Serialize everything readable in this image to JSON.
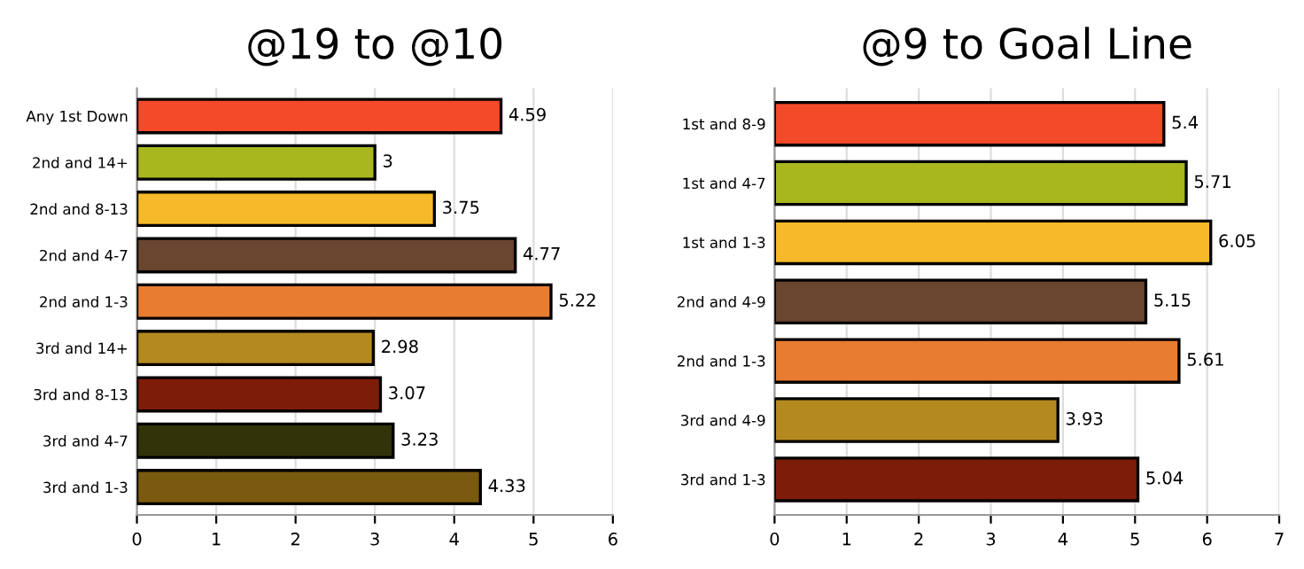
{
  "chart_data": [
    {
      "type": "bar",
      "title": "@19 to @10",
      "orientation": "horizontal",
      "categories": [
        "Any 1st Down",
        "2nd and 14+",
        "2nd and 8-13",
        "2nd and 4-7",
        "2nd and 1-3",
        "3rd and 14+",
        "3rd and 8-13",
        "3rd and 4-7",
        "3rd and 1-3"
      ],
      "values": [
        4.59,
        3,
        3.75,
        4.77,
        5.22,
        2.98,
        3.07,
        3.23,
        4.33
      ],
      "colors": [
        "#f34a2a",
        "#a8b71e",
        "#f6b929",
        "#6a4530",
        "#e87d31",
        "#b4891f",
        "#7e1c0a",
        "#33330a",
        "#7a5a0e"
      ],
      "xlim": [
        0,
        6
      ],
      "xticks": [
        0,
        1,
        2,
        3,
        4,
        5,
        6
      ],
      "grid": "x",
      "data_labels": true,
      "legend": false
    },
    {
      "type": "bar",
      "title": "@9 to Goal Line",
      "orientation": "horizontal",
      "categories": [
        "1st and 8-9",
        "1st and 4-7",
        "1st and 1-3",
        "2nd and 4-9",
        "2nd and 1-3",
        "3rd and 4-9",
        "3rd and 1-3"
      ],
      "values": [
        5.4,
        5.71,
        6.05,
        5.15,
        5.61,
        3.93,
        5.04
      ],
      "colors": [
        "#f34a2a",
        "#a8b71e",
        "#f6b929",
        "#6a4530",
        "#e87d31",
        "#b4891f",
        "#7e1c0a"
      ],
      "xlim": [
        0,
        7
      ],
      "xticks": [
        0,
        1,
        2,
        3,
        4,
        5,
        6,
        7
      ],
      "grid": "x",
      "data_labels": true,
      "legend": false
    }
  ]
}
